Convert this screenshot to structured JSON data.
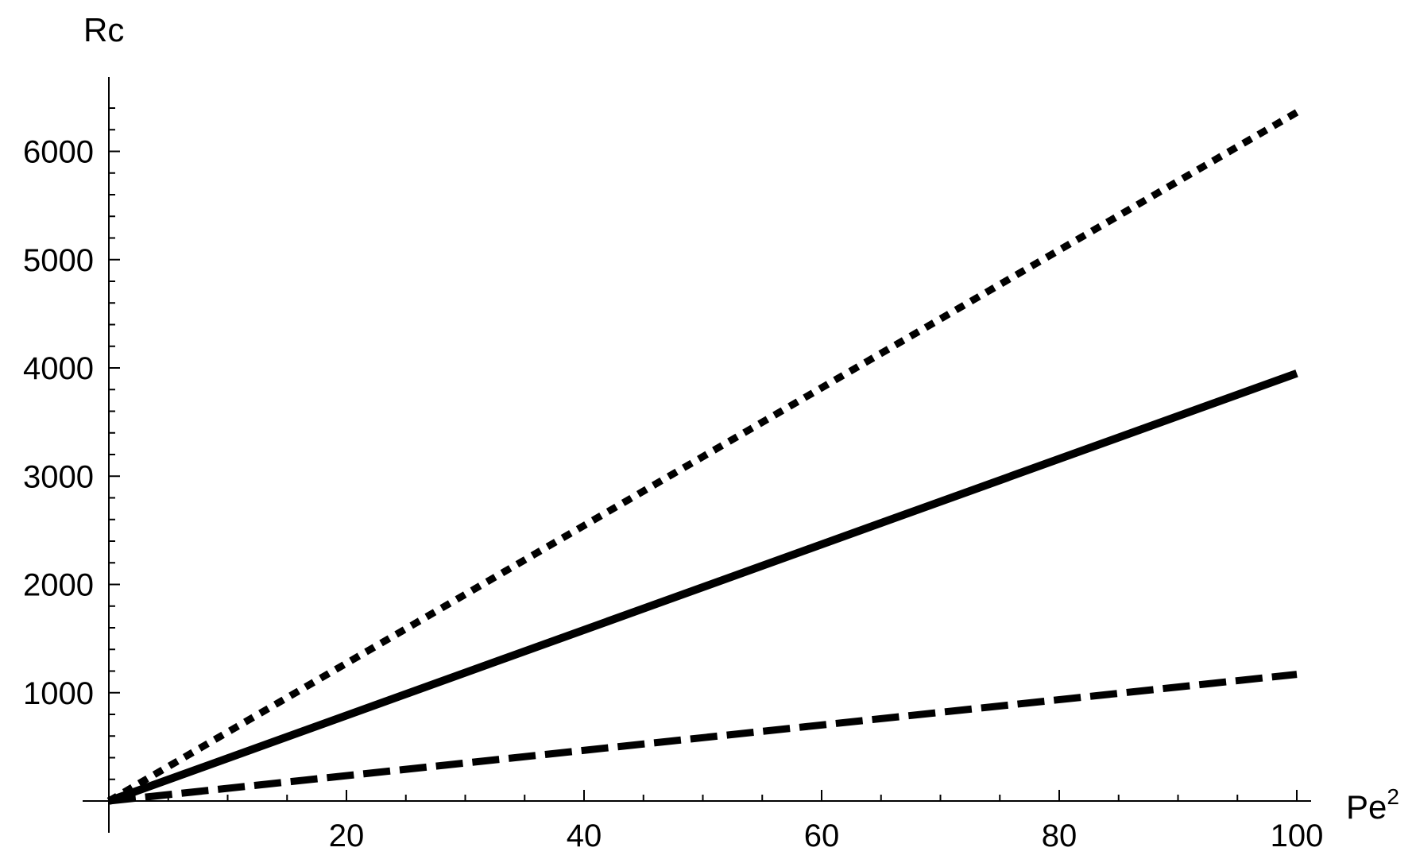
{
  "chart_data": {
    "type": "line",
    "title": "",
    "xlabel": "Pe",
    "xlabel_superscript": "2",
    "ylabel": "Rc",
    "xlim": [
      0,
      100
    ],
    "ylim": [
      0,
      6500
    ],
    "x_ticks": [
      20,
      40,
      60,
      80,
      100
    ],
    "y_ticks": [
      1000,
      2000,
      3000,
      4000,
      5000,
      6000
    ],
    "x_minor_step": 5,
    "y_minor_step": 200,
    "grid": false,
    "series": [
      {
        "style": "dotted",
        "x": [
          0,
          100
        ],
        "y": [
          0,
          6360
        ]
      },
      {
        "style": "solid",
        "x": [
          0,
          100
        ],
        "y": [
          0,
          3950
        ]
      },
      {
        "style": "dashed",
        "x": [
          0,
          100
        ],
        "y": [
          0,
          1170
        ]
      }
    ]
  }
}
